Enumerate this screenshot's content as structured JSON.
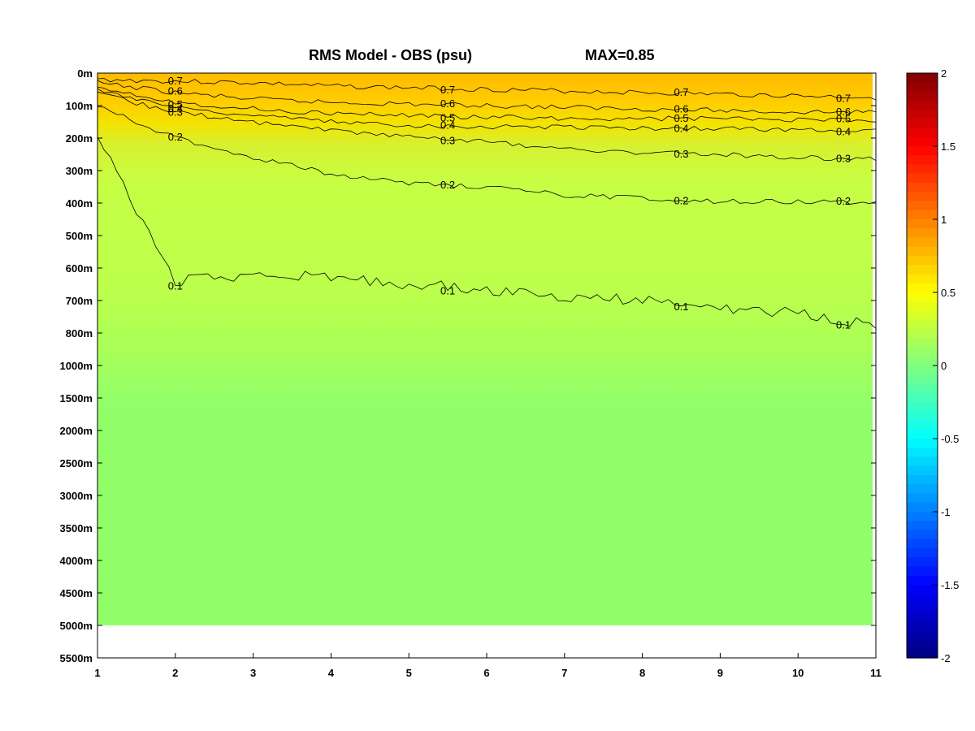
{
  "chart_data": {
    "type": "contour",
    "title": "RMS Model - OBS (psu)",
    "max_label": "MAX=0.85",
    "x_ticks": [
      "1",
      "2",
      "3",
      "4",
      "5",
      "6",
      "7",
      "8",
      "9",
      "10",
      "11"
    ],
    "xlim": [
      1,
      11
    ],
    "y_ticks": [
      "0m",
      "100m",
      "200m",
      "300m",
      "400m",
      "500m",
      "600m",
      "700m",
      "800m",
      "1000m",
      "1500m",
      "2000m",
      "2500m",
      "3000m",
      "3500m",
      "4000m",
      "4500m",
      "5000m",
      "5500m"
    ],
    "colorbar": {
      "range": [
        -2,
        2
      ],
      "tick_labels": [
        "2",
        "1.5",
        "1",
        "0.5",
        "0",
        "-0.5",
        "-1",
        "-1.5",
        "-2"
      ],
      "tick_values": [
        2,
        1.5,
        1,
        0.5,
        0,
        -0.5,
        -1,
        -1.5,
        -2
      ]
    },
    "data_bottom_depth": "5000m",
    "contours": [
      {
        "level": 0.7,
        "label": "0.7",
        "depth_index": [
          0.2,
          0.25,
          0.3,
          0.4,
          0.45,
          0.5,
          0.55,
          0.6,
          0.65,
          0.7,
          0.75
        ]
      },
      {
        "level": 0.6,
        "label": "0.6",
        "depth_index": [
          0.3,
          0.6,
          0.8,
          0.9,
          0.95,
          1.0,
          1.05,
          1.1,
          1.15,
          1.2,
          1.2
        ]
      },
      {
        "level": 0.5,
        "label": "0.5",
        "depth_index": [
          0.4,
          0.9,
          1.1,
          1.25,
          1.3,
          1.35,
          1.4,
          1.4,
          1.4,
          1.45,
          1.45
        ]
      },
      {
        "level": 0.4,
        "label": "0.4",
        "depth_index": [
          0.5,
          1.05,
          1.3,
          1.5,
          1.6,
          1.65,
          1.65,
          1.7,
          1.7,
          1.75,
          1.75
        ]
      },
      {
        "level": 0.3,
        "label": "0.3",
        "depth_index": [
          0.65,
          1.2,
          1.5,
          1.75,
          1.95,
          2.1,
          2.35,
          2.45,
          2.5,
          2.6,
          2.65
        ]
      },
      {
        "level": 0.2,
        "label": "0.2",
        "depth_index": [
          1.0,
          2.0,
          2.6,
          3.1,
          3.4,
          3.5,
          3.75,
          3.85,
          3.95,
          3.95,
          4.0
        ]
      },
      {
        "level": 0.1,
        "label": "0.1",
        "depth_index": [
          2.0,
          6.4,
          6.2,
          6.3,
          6.5,
          6.65,
          6.9,
          7.0,
          7.2,
          7.4,
          7.8
        ]
      }
    ]
  }
}
